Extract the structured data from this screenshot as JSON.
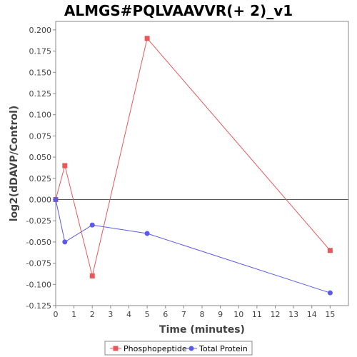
{
  "chart_data": {
    "type": "line",
    "title": "ALMGS#PQLVAAVVR(+ 2)_v1",
    "xlabel": "Time (minutes)",
    "ylabel": "log2(dDAVP/Control)",
    "xlim": [
      0,
      16
    ],
    "ylim": [
      -0.125,
      0.21
    ],
    "x_ticks": [
      0,
      1,
      2,
      3,
      4,
      5,
      6,
      7,
      8,
      9,
      10,
      11,
      12,
      13,
      14,
      15
    ],
    "y_ticks": [
      -0.125,
      -0.1,
      -0.075,
      -0.05,
      -0.025,
      0.0,
      0.025,
      0.05,
      0.075,
      0.1,
      0.125,
      0.15,
      0.175,
      0.2
    ],
    "y_tick_labels": [
      "-0.125",
      "-0.100",
      "-0.075",
      "-0.050",
      "-0.025",
      "0.000",
      "0.025",
      "0.050",
      "0.075",
      "0.100",
      "0.125",
      "0.150",
      "0.175",
      "0.200"
    ],
    "grid": false,
    "zero_line": true,
    "legend_position": "bottom",
    "series": [
      {
        "name": "Phosphopeptide",
        "color": "#e8575a",
        "marker": "square",
        "x": [
          0,
          0.5,
          2,
          5,
          15
        ],
        "y": [
          0.0,
          0.04,
          -0.09,
          0.19,
          -0.06
        ]
      },
      {
        "name": "Total Protein",
        "color": "#5b5be8",
        "marker": "circle",
        "x": [
          0,
          0.5,
          2,
          5,
          15
        ],
        "y": [
          0.0,
          -0.05,
          -0.03,
          -0.04,
          -0.11
        ]
      }
    ]
  }
}
